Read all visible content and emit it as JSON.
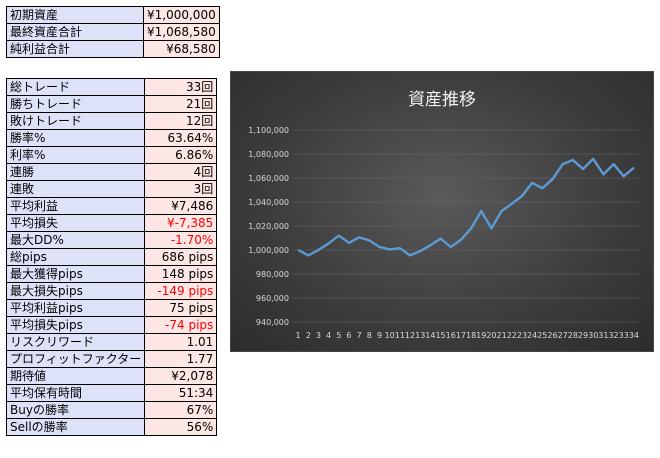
{
  "summary": [
    {
      "label": "初期資産",
      "value": "¥1,000,000"
    },
    {
      "label": "最終資産合計",
      "value": "¥1,068,580"
    },
    {
      "label": "純利益合計",
      "value": "¥68,580"
    }
  ],
  "stats": [
    {
      "label": "総トレード",
      "value": "33回",
      "negative": false
    },
    {
      "label": "勝ちトレード",
      "value": "21回",
      "negative": false
    },
    {
      "label": "敗けトレード",
      "value": "12回",
      "negative": false
    },
    {
      "label": "勝率%",
      "value": "63.64%",
      "negative": false
    },
    {
      "label": "利率%",
      "value": "6.86%",
      "negative": false
    },
    {
      "label": "連勝",
      "value": "4回",
      "negative": false
    },
    {
      "label": "連敗",
      "value": "3回",
      "negative": false
    },
    {
      "label": "平均利益",
      "value": "¥7,486",
      "negative": false
    },
    {
      "label": "平均損失",
      "value": "¥-7,385",
      "negative": true
    },
    {
      "label": "最大DD%",
      "value": "-1.70%",
      "negative": true
    },
    {
      "label": "総pips",
      "value": "686 pips",
      "negative": false
    },
    {
      "label": "最大獲得pips",
      "value": "148 pips",
      "negative": false
    },
    {
      "label": "最大損失pips",
      "value": "-149 pips",
      "negative": true
    },
    {
      "label": "平均利益pips",
      "value": "75 pips",
      "negative": false
    },
    {
      "label": "平均損失pips",
      "value": "-74 pips",
      "negative": true
    },
    {
      "label": "リスクリワード",
      "value": "1.01",
      "negative": false
    },
    {
      "label": "プロフィットファクター",
      "value": "1.77",
      "negative": false
    },
    {
      "label": "期待値",
      "value": "¥2,078",
      "negative": false
    },
    {
      "label": "平均保有時間",
      "value": "51:34",
      "negative": false
    },
    {
      "label": "Buyの勝率",
      "value": "67%",
      "negative": false
    },
    {
      "label": "Sellの勝率",
      "value": "56%",
      "negative": false
    }
  ],
  "chart_data": {
    "type": "line",
    "title": "資産推移",
    "x": [
      1,
      2,
      3,
      4,
      5,
      6,
      7,
      8,
      9,
      10,
      11,
      12,
      13,
      14,
      15,
      16,
      17,
      18,
      19,
      20,
      21,
      22,
      23,
      24,
      25,
      26,
      27,
      28,
      29,
      30,
      31,
      32,
      33,
      34
    ],
    "series": [
      {
        "values": [
          1000000,
          995500,
          1000000,
          1005500,
          1012000,
          1006000,
          1010500,
          1008000,
          1002500,
          1000500,
          1001500,
          995500,
          999000,
          1004000,
          1009500,
          1002500,
          1008500,
          1018000,
          1032500,
          1018000,
          1032500,
          1038500,
          1045000,
          1056000,
          1051500,
          1059000,
          1071500,
          1075000,
          1067500,
          1076000,
          1063000,
          1071500,
          1061500,
          1068580
        ]
      }
    ],
    "ylim": [
      940000,
      1100000
    ],
    "yticks": [
      940000,
      960000,
      980000,
      1000000,
      1020000,
      1040000,
      1060000,
      1080000,
      1100000
    ],
    "ytick_labels": [
      "940,000",
      "960,000",
      "980,000",
      "1,000,000",
      "1,020,000",
      "1,040,000",
      "1,060,000",
      "1,080,000",
      "1,100,000"
    ],
    "xtick_labels": [
      "1",
      "2",
      "3",
      "4",
      "5",
      "6",
      "7",
      "8",
      "9",
      "10",
      "11",
      "12",
      "13",
      "14",
      "15",
      "16",
      "17",
      "18",
      "19",
      "20",
      "21",
      "22",
      "23",
      "24",
      "25",
      "26",
      "27",
      "28",
      "29",
      "30",
      "31",
      "32",
      "33",
      "34"
    ],
    "line_color": "#5b9bd5",
    "background": "#404040",
    "grid": true,
    "legend": "none"
  }
}
